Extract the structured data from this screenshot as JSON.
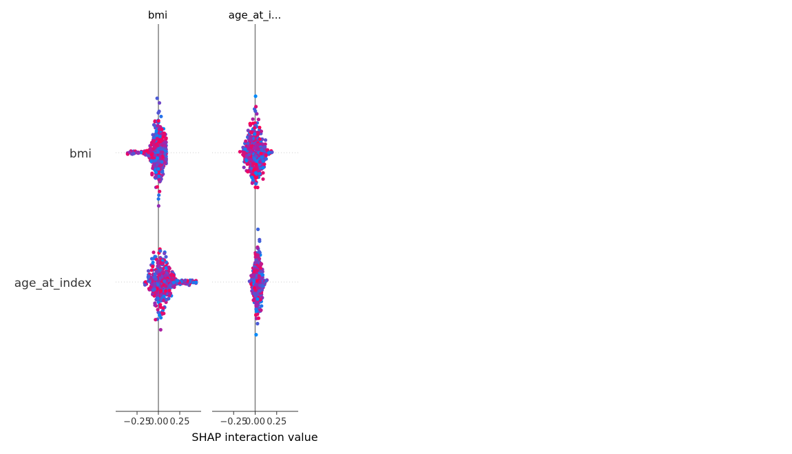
{
  "chart_data": {
    "type": "scatter",
    "subtype": "shap-interaction-beeswarm",
    "xlabel": "SHAP interaction value",
    "features": [
      "bmi",
      "age_at_index"
    ],
    "panel_titles": [
      "bmi",
      "age_at_i..."
    ],
    "xlim": [
      -0.5,
      0.5
    ],
    "xticks": [
      -0.25,
      0.0,
      0.25
    ],
    "xtick_labels": [
      "−0.25",
      "0.00",
      "0.25"
    ],
    "grid": false,
    "legend": "none",
    "colormap": {
      "low": "#008bfb",
      "mid": "#9c27b0",
      "high": "#ff0052"
    },
    "panels": [
      {
        "title": "bmi",
        "rows": [
          {
            "feature": "bmi",
            "center": 0.0,
            "min": -0.36,
            "max": 0.09,
            "vertical_extent": 0.9,
            "skew": "left"
          },
          {
            "feature": "age_at_index",
            "center": 0.02,
            "min": -0.19,
            "max": 0.44,
            "vertical_extent": 0.9,
            "skew": "right"
          }
        ]
      },
      {
        "title": "age_at_i...",
        "rows": [
          {
            "feature": "bmi",
            "center": 0.0,
            "min": -0.33,
            "max": 0.22,
            "vertical_extent": 0.85,
            "skew": "none"
          },
          {
            "feature": "age_at_index",
            "center": 0.03,
            "min": -0.13,
            "max": 0.15,
            "vertical_extent": 0.88,
            "skew": "none"
          }
        ]
      }
    ]
  }
}
